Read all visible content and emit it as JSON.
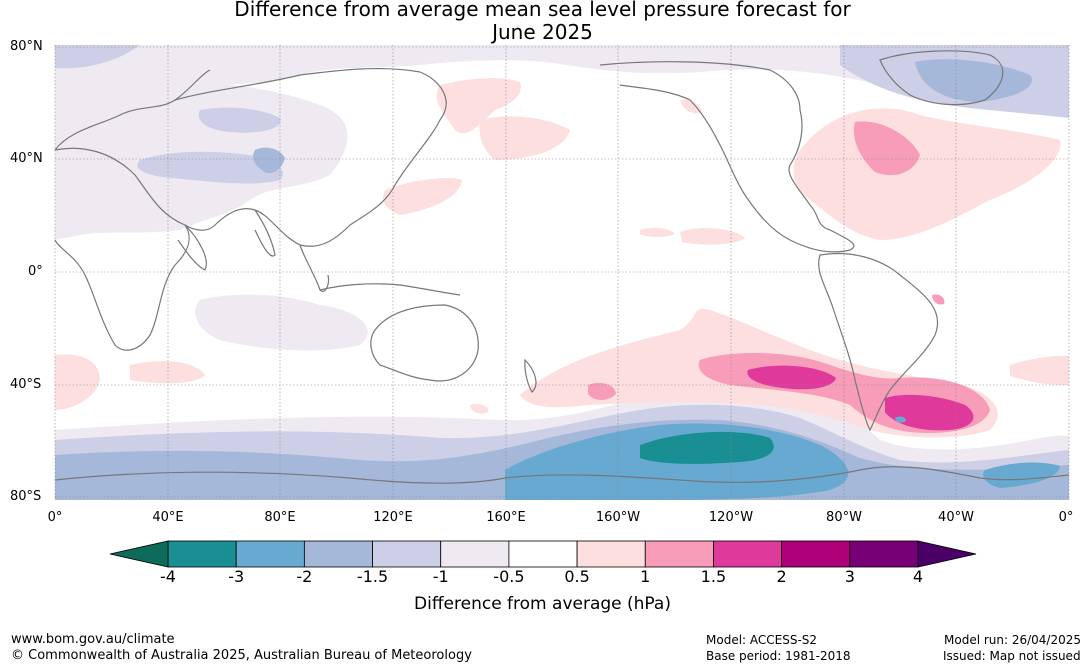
{
  "title_line1": "Difference from average mean sea level pressure forecast for",
  "title_line2": "June 2025",
  "lat_labels": [
    "80°N",
    "40°N",
    "0°",
    "40°S",
    "80°S"
  ],
  "lon_labels": [
    "0°",
    "40°E",
    "80°E",
    "120°E",
    "160°E",
    "160°W",
    "120°W",
    "80°W",
    "40°W",
    "0°"
  ],
  "colorbar": {
    "ticks": [
      "-4",
      "-3",
      "-2",
      "-1.5",
      "-1",
      "-0.5",
      "0.5",
      "1",
      "1.5",
      "2",
      "3",
      "4"
    ],
    "colors": [
      "#1a8f93",
      "#67a9d0",
      "#a5b8da",
      "#cdcfe6",
      "#efe9f2",
      "#ffffff",
      "#fddfe0",
      "#f79dba",
      "#df3a9b",
      "#ae0079",
      "#780077"
    ],
    "under_color": "#0d6b5c",
    "over_color": "#4b0068",
    "label": "Difference from average (hPa)"
  },
  "footer": {
    "url": "www.bom.gov.au/climate",
    "copyright": "© Commonwealth of Australia 2025, Australian Bureau of Meteorology",
    "model": "Model: ACCESS-S2",
    "base_period": "Base period: 1981-2018",
    "model_run": "Model run: 26/04/2025",
    "issued": "Issued: Map not issued"
  }
}
